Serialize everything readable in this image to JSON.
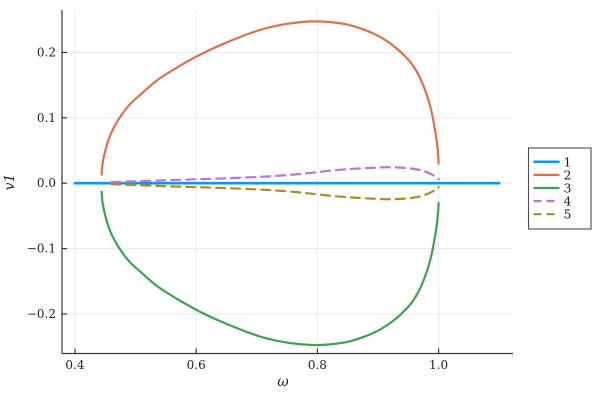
{
  "figure": {
    "background": "#ffffff",
    "text_color": "#1f1f1f",
    "grid_color": "#e8e8e8",
    "spine_color": "#363636",
    "legend_border_color": "#4d4d4d"
  },
  "chart_data": {
    "type": "line",
    "title": "",
    "xlabel": "ω",
    "ylabel": "v1",
    "xlim": [
      0.3786,
      1.1228
    ],
    "ylim": [
      -0.2604,
      0.2649
    ],
    "grid": true,
    "legend_position": "outer-right",
    "xticks": {
      "values": [
        0.4,
        0.6,
        0.8,
        1.0
      ],
      "labels": [
        "0.4",
        "0.6",
        "0.8",
        "1.0"
      ]
    },
    "yticks": {
      "values": [
        -0.2,
        -0.1,
        0.0,
        0.1,
        0.2
      ],
      "labels": [
        "−0.2",
        "−0.1",
        "0.0",
        "0.1",
        "0.2"
      ]
    },
    "series": [
      {
        "name": "1",
        "color": "#009AFA",
        "style": "solid",
        "width": 2.6,
        "points": [
          [
            0.4,
            0.0
          ],
          [
            1.1,
            0.0
          ]
        ]
      },
      {
        "name": "2",
        "color": "#E36F47",
        "style": "solid",
        "width": 2.2,
        "points": [
          [
            0.444,
            0.013
          ],
          [
            0.446,
            0.032
          ],
          [
            0.45,
            0.05
          ],
          [
            0.456,
            0.068
          ],
          [
            0.464,
            0.085
          ],
          [
            0.475,
            0.102
          ],
          [
            0.49,
            0.12
          ],
          [
            0.51,
            0.137
          ],
          [
            0.535,
            0.157
          ],
          [
            0.565,
            0.175
          ],
          [
            0.595,
            0.191
          ],
          [
            0.625,
            0.205
          ],
          [
            0.655,
            0.217
          ],
          [
            0.685,
            0.228
          ],
          [
            0.715,
            0.237
          ],
          [
            0.745,
            0.243
          ],
          [
            0.775,
            0.2465
          ],
          [
            0.8,
            0.2475
          ],
          [
            0.825,
            0.246
          ],
          [
            0.85,
            0.2425
          ],
          [
            0.875,
            0.2355
          ],
          [
            0.9,
            0.2255
          ],
          [
            0.925,
            0.2105
          ],
          [
            0.95,
            0.189
          ],
          [
            0.965,
            0.169
          ],
          [
            0.978,
            0.142
          ],
          [
            0.988,
            0.111
          ],
          [
            0.995,
            0.076
          ],
          [
            0.999,
            0.046
          ],
          [
            1.0,
            0.03
          ]
        ]
      },
      {
        "name": "3",
        "color": "#3DA44D",
        "style": "solid",
        "width": 2.2,
        "points": [
          [
            0.444,
            -0.013
          ],
          [
            0.446,
            -0.032
          ],
          [
            0.45,
            -0.05
          ],
          [
            0.456,
            -0.068
          ],
          [
            0.464,
            -0.085
          ],
          [
            0.475,
            -0.102
          ],
          [
            0.49,
            -0.12
          ],
          [
            0.51,
            -0.137
          ],
          [
            0.535,
            -0.157
          ],
          [
            0.565,
            -0.175
          ],
          [
            0.595,
            -0.191
          ],
          [
            0.625,
            -0.205
          ],
          [
            0.655,
            -0.217
          ],
          [
            0.685,
            -0.228
          ],
          [
            0.715,
            -0.237
          ],
          [
            0.745,
            -0.243
          ],
          [
            0.775,
            -0.2465
          ],
          [
            0.8,
            -0.2475
          ],
          [
            0.825,
            -0.246
          ],
          [
            0.85,
            -0.2425
          ],
          [
            0.875,
            -0.2355
          ],
          [
            0.9,
            -0.2255
          ],
          [
            0.925,
            -0.2105
          ],
          [
            0.95,
            -0.189
          ],
          [
            0.965,
            -0.169
          ],
          [
            0.978,
            -0.142
          ],
          [
            0.988,
            -0.111
          ],
          [
            0.995,
            -0.076
          ],
          [
            0.999,
            -0.046
          ],
          [
            1.0,
            -0.03
          ]
        ]
      },
      {
        "name": "4",
        "color": "#C372D2",
        "style": "dash",
        "width": 2.2,
        "points": [
          [
            0.46,
            0.0015
          ],
          [
            0.5,
            0.003
          ],
          [
            0.55,
            0.0045
          ],
          [
            0.6,
            0.006
          ],
          [
            0.65,
            0.0075
          ],
          [
            0.7,
            0.0095
          ],
          [
            0.73,
            0.011
          ],
          [
            0.77,
            0.014
          ],
          [
            0.8,
            0.017
          ],
          [
            0.83,
            0.02
          ],
          [
            0.86,
            0.022
          ],
          [
            0.89,
            0.0235
          ],
          [
            0.92,
            0.0245
          ],
          [
            0.95,
            0.023
          ],
          [
            0.97,
            0.02
          ],
          [
            0.985,
            0.015
          ],
          [
            0.995,
            0.01
          ],
          [
            1.0,
            0.006
          ]
        ]
      },
      {
        "name": "5",
        "color": "#AD8E18",
        "style": "dash",
        "width": 2.2,
        "points": [
          [
            0.46,
            -0.0015
          ],
          [
            0.5,
            -0.003
          ],
          [
            0.55,
            -0.0045
          ],
          [
            0.6,
            -0.006
          ],
          [
            0.65,
            -0.0075
          ],
          [
            0.7,
            -0.0095
          ],
          [
            0.73,
            -0.011
          ],
          [
            0.77,
            -0.014
          ],
          [
            0.8,
            -0.017
          ],
          [
            0.83,
            -0.02
          ],
          [
            0.86,
            -0.022
          ],
          [
            0.89,
            -0.0235
          ],
          [
            0.92,
            -0.0245
          ],
          [
            0.95,
            -0.023
          ],
          [
            0.97,
            -0.02
          ],
          [
            0.985,
            -0.015
          ],
          [
            0.995,
            -0.01
          ],
          [
            1.0,
            -0.006
          ]
        ]
      }
    ],
    "legend": {
      "entries": [
        {
          "label": "1"
        },
        {
          "label": "2"
        },
        {
          "label": "3"
        },
        {
          "label": "4"
        },
        {
          "label": "5"
        }
      ]
    }
  }
}
